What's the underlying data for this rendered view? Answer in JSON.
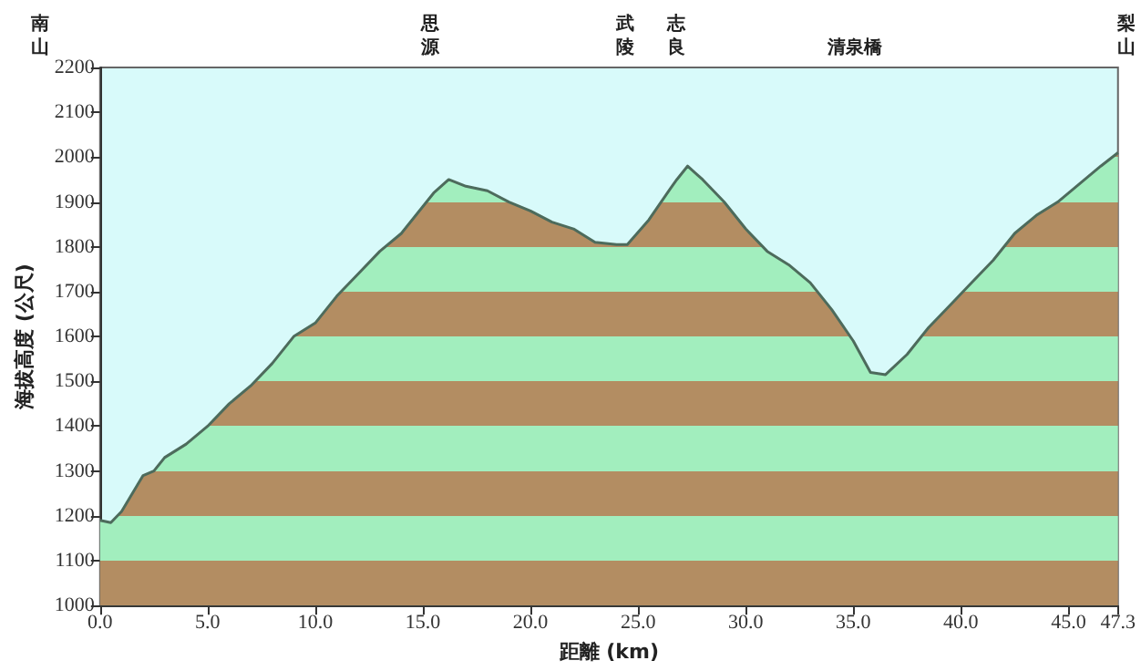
{
  "chart_data": {
    "type": "area",
    "xlabel": "距離 (km)",
    "ylabel": "海拔高度 (公尺)",
    "x": [
      0,
      0.5,
      1,
      2,
      2.5,
      3,
      4,
      5,
      6,
      7,
      8,
      9,
      10,
      11,
      12,
      13,
      14,
      15,
      15.5,
      16.2,
      17,
      18,
      19,
      20,
      21,
      22,
      23,
      24,
      24.5,
      25.5,
      26.5,
      26.8,
      27.3,
      28,
      29,
      30,
      31,
      32,
      33,
      34,
      35,
      35.8,
      36.5,
      37.5,
      38.5,
      39.5,
      40.5,
      41.5,
      42.5,
      43.5,
      44.5,
      45.5,
      46.5,
      47.3
    ],
    "series": [
      {
        "color": "#4d6b5c",
        "values": [
          1190,
          1185,
          1210,
          1290,
          1300,
          1330,
          1360,
          1400,
          1450,
          1490,
          1540,
          1600,
          1630,
          1690,
          1740,
          1790,
          1830,
          1890,
          1920,
          1950,
          1935,
          1925,
          1900,
          1880,
          1855,
          1840,
          1810,
          1805,
          1805,
          1860,
          1930,
          1950,
          1980,
          1950,
          1900,
          1840,
          1790,
          1760,
          1720,
          1660,
          1590,
          1520,
          1515,
          1560,
          1620,
          1670,
          1720,
          1770,
          1830,
          1870,
          1900,
          1940,
          1980,
          2010
        ]
      }
    ],
    "xlim": [
      0,
      47.3
    ],
    "xticks": [
      {
        "value": 0,
        "label": "0.0"
      },
      {
        "value": 5,
        "label": "5.0"
      },
      {
        "value": 10,
        "label": "10.0"
      },
      {
        "value": 15,
        "label": "15.0"
      },
      {
        "value": 20,
        "label": "20.0"
      },
      {
        "value": 25,
        "label": "25.0"
      },
      {
        "value": 30,
        "label": "30.0"
      },
      {
        "value": 35,
        "label": "35.0"
      },
      {
        "value": 40,
        "label": "40.0"
      },
      {
        "value": 45,
        "label": "45.0"
      },
      {
        "value": 47.3,
        "label": "47.3"
      }
    ],
    "annotations": [
      "南山",
      "思源",
      "武陵",
      "志良",
      "清泉橋",
      "梨山"
    ],
    "ylim": [
      1000,
      2200
    ],
    "yticks": [
      1000,
      1100,
      1200,
      1300,
      1400,
      1500,
      1600,
      1700,
      1800,
      1900,
      2000,
      2100,
      2200
    ],
    "grid": false,
    "marker": "none",
    "line_style": "solid"
  }
}
